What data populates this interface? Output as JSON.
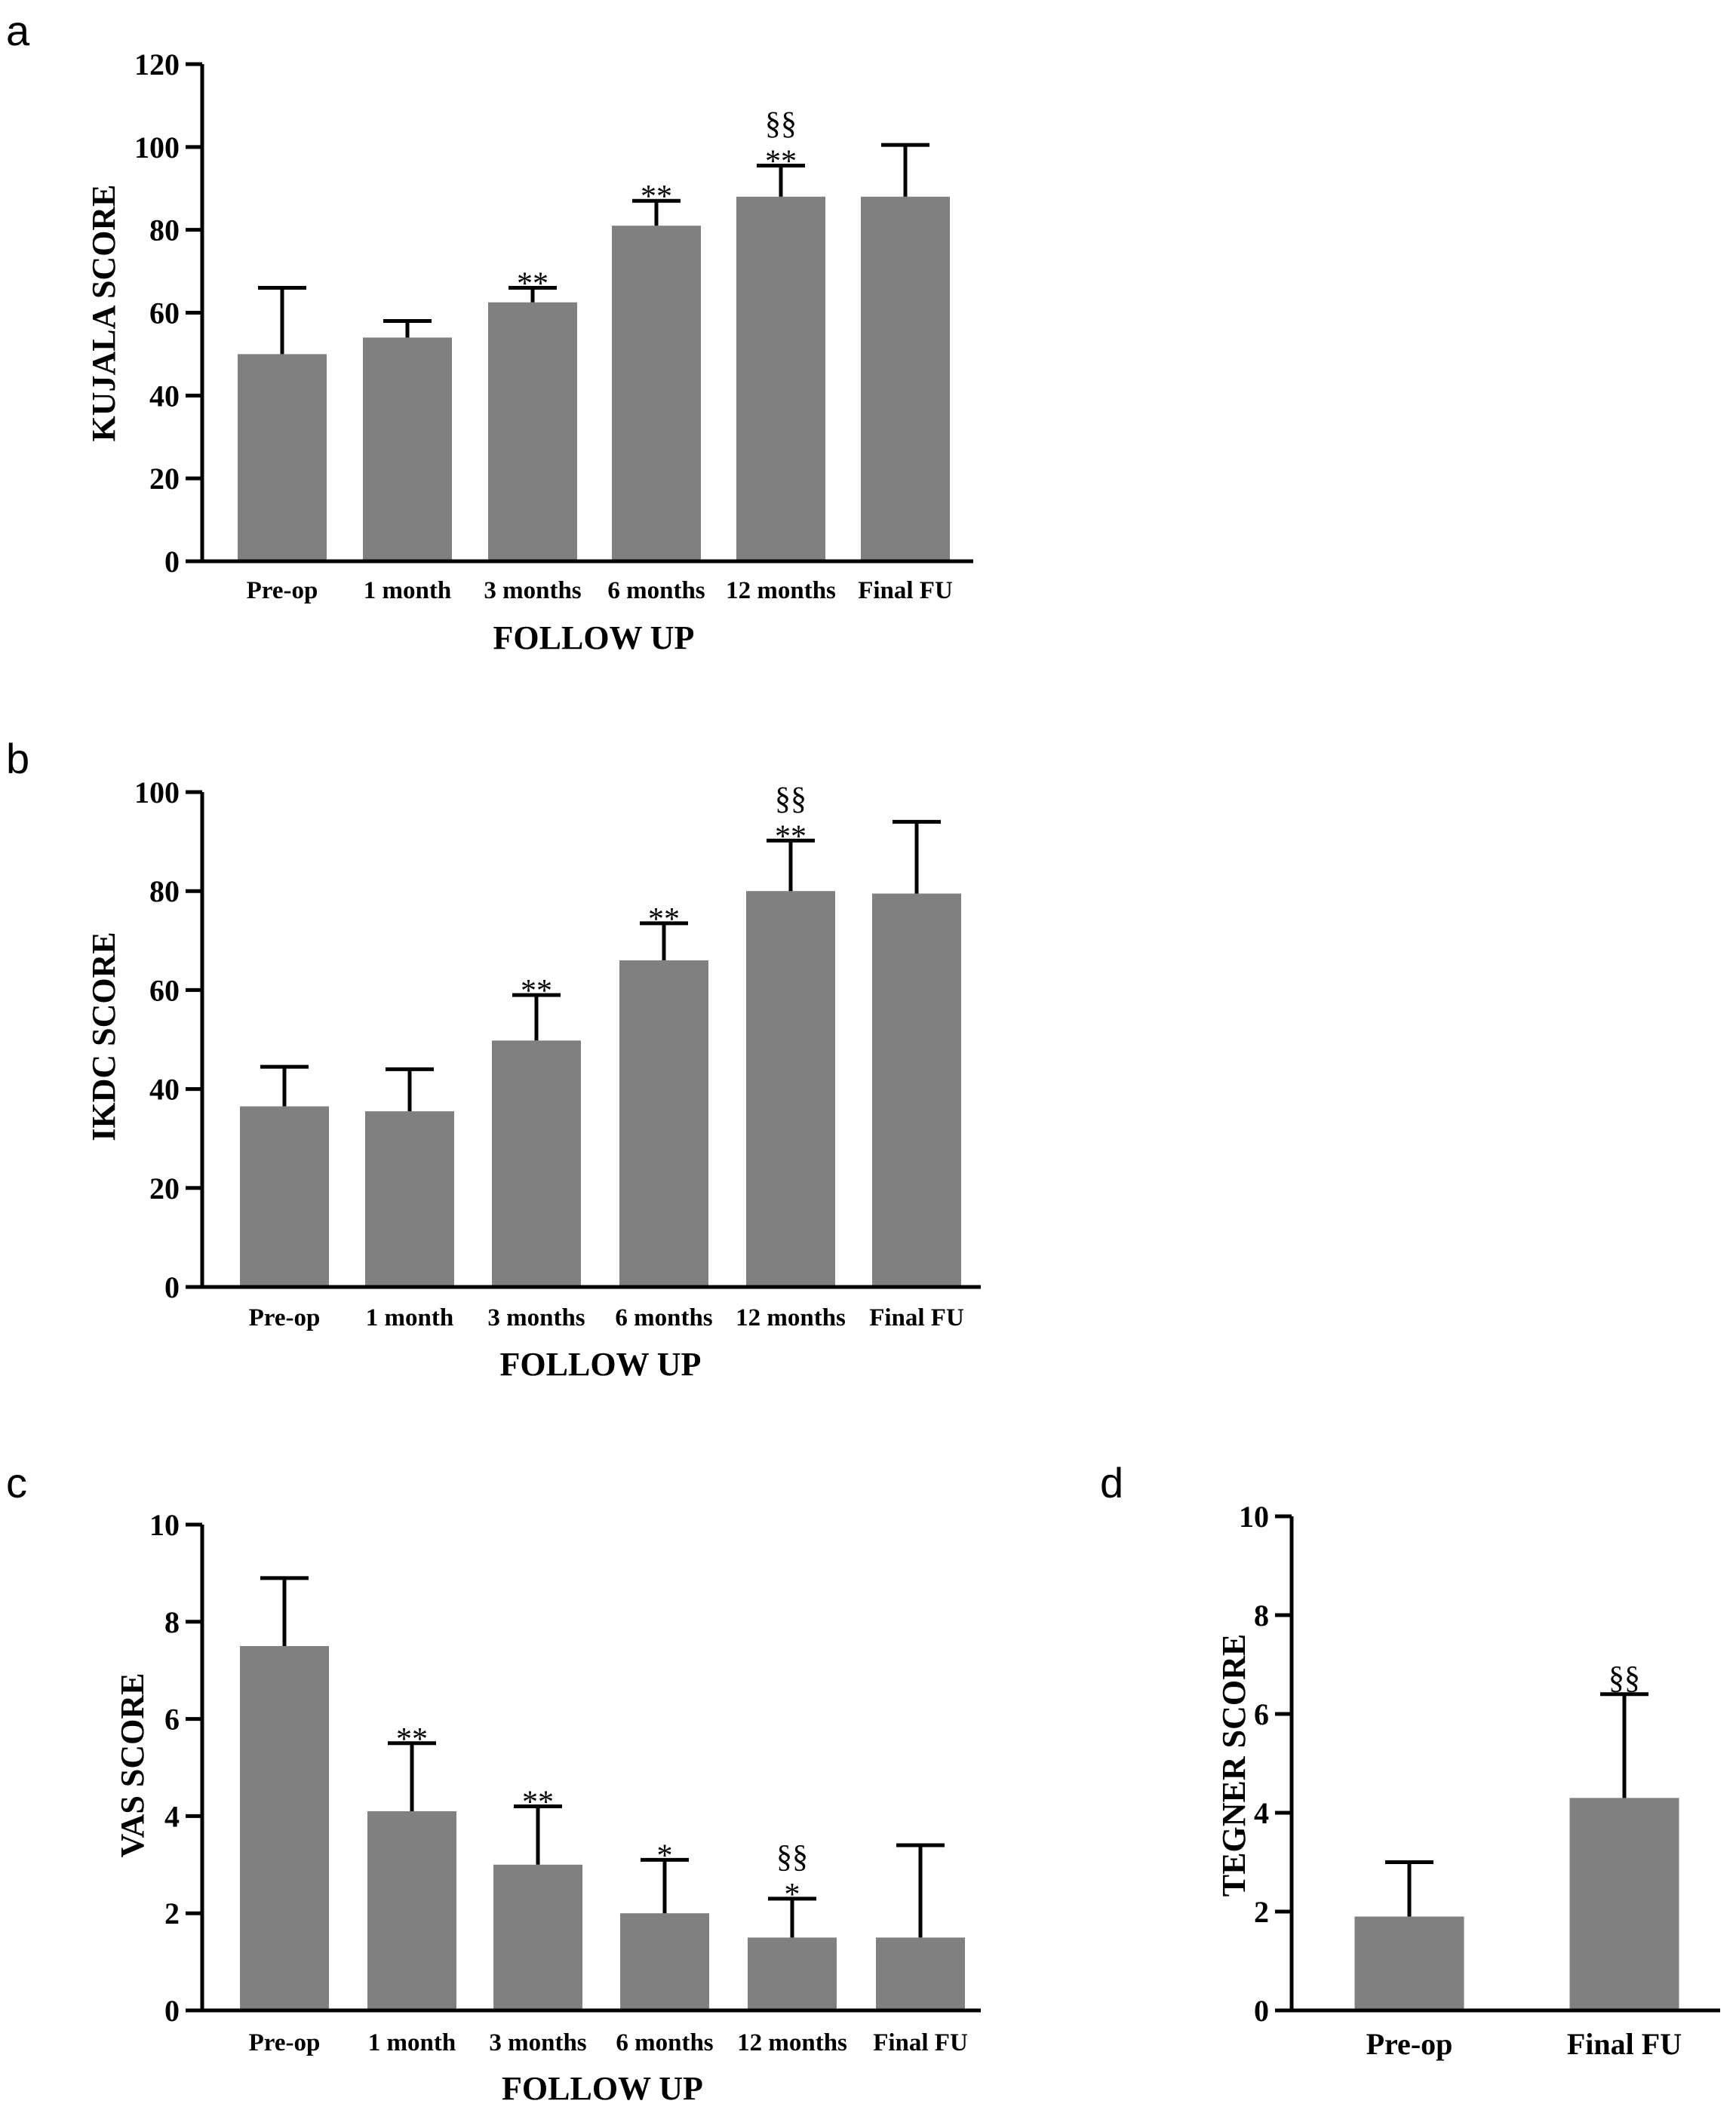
{
  "chart_data": [
    {
      "id": "a",
      "panel_label": "a",
      "type": "bar",
      "xlabel": "FOLLOW UP",
      "ylabel": "KUJALA  SCORE",
      "ylim": [
        0,
        120
      ],
      "yticks": [
        0,
        20,
        40,
        60,
        80,
        100,
        120
      ],
      "categories": [
        "Pre-op",
        "1 month",
        "3 months",
        "6 months",
        "12 months",
        "Final FU"
      ],
      "values": [
        50,
        54,
        62.5,
        81,
        88,
        88
      ],
      "error": [
        16,
        4,
        3.5,
        6,
        7.5,
        12.5
      ],
      "annotations": [
        "",
        "",
        "**",
        "**",
        "§§\n**",
        ""
      ]
    },
    {
      "id": "b",
      "panel_label": "b",
      "type": "bar",
      "xlabel": "FOLLOW UP",
      "ylabel": "IKDC SCORE",
      "ylim": [
        0,
        100
      ],
      "yticks": [
        0,
        20,
        40,
        60,
        80,
        100
      ],
      "categories": [
        "Pre-op",
        "1 month",
        "3 months",
        "6 months",
        "12 months",
        "Final FU"
      ],
      "values": [
        36.5,
        35.5,
        49.8,
        66,
        80,
        79.5
      ],
      "error": [
        8,
        8.5,
        9.2,
        7.5,
        10.2,
        14.5
      ],
      "annotations": [
        "",
        "",
        "**",
        "**",
        "§§\n**",
        ""
      ]
    },
    {
      "id": "c",
      "panel_label": "c",
      "type": "bar",
      "xlabel": "FOLLOW UP",
      "ylabel": "VAS SCORE",
      "ylim": [
        0,
        10
      ],
      "yticks": [
        0,
        2,
        4,
        6,
        8,
        10
      ],
      "categories": [
        "Pre-op",
        "1 month",
        "3 months",
        "6 months",
        "12 months",
        "Final FU"
      ],
      "values": [
        7.5,
        4.1,
        3.0,
        2.0,
        1.5,
        1.5
      ],
      "error": [
        1.4,
        1.4,
        1.2,
        1.1,
        0.8,
        1.9
      ],
      "annotations": [
        "",
        "**",
        "**",
        "*",
        "§§\n*",
        ""
      ]
    },
    {
      "id": "d",
      "panel_label": "d",
      "type": "bar",
      "xlabel": "",
      "ylabel": "TEGNER SCORE",
      "ylim": [
        0,
        10
      ],
      "yticks": [
        0,
        2,
        4,
        6,
        8,
        10
      ],
      "categories": [
        "Pre-op",
        "Final FU"
      ],
      "values": [
        1.9,
        4.3
      ],
      "error": [
        1.1,
        2.1
      ],
      "annotations": [
        "",
        "§§"
      ]
    }
  ],
  "colors": {
    "bar": "#808080",
    "axis": "#000000"
  }
}
